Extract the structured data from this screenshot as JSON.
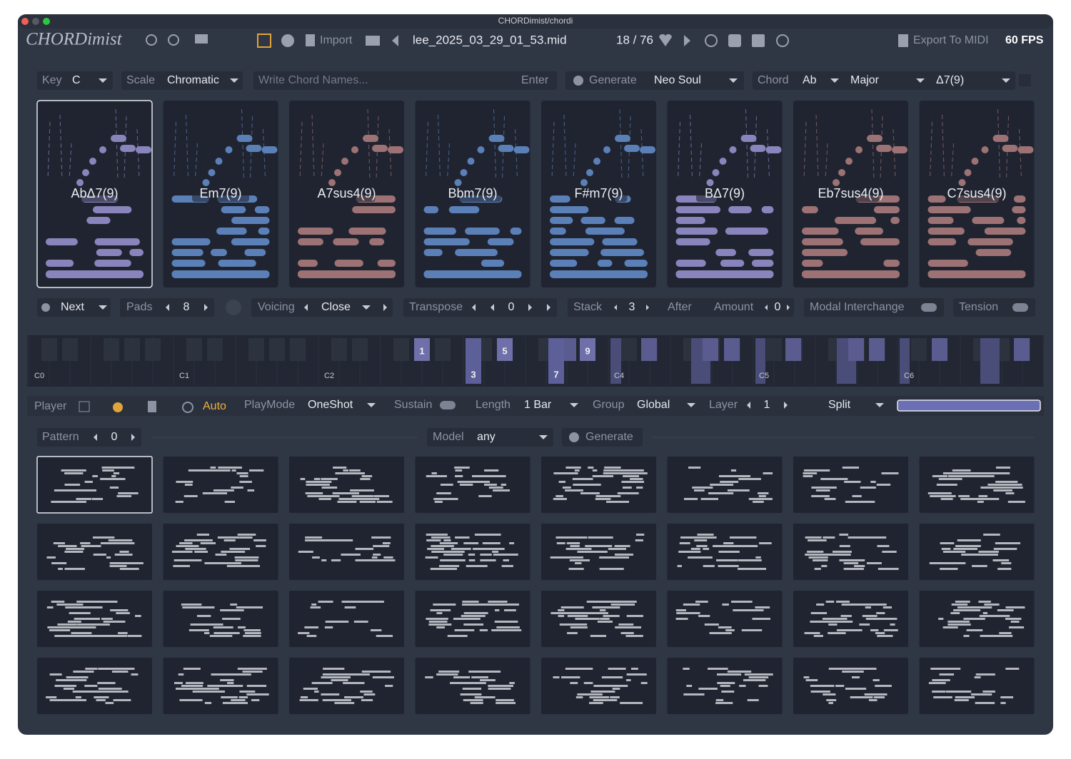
{
  "window_title": "CHORDimist/chordi",
  "toolbar": {
    "logo": "CHORDimist",
    "import": "Import",
    "file": "lee_2025_03_29_01_53.mid",
    "position": "18 / 76",
    "export": "Export To MIDI",
    "fps": "60 FPS"
  },
  "chord_bar": {
    "key_label": "Key",
    "key": "C",
    "scale_label": "Scale",
    "scale": "Chromatic",
    "input_placeholder": "Write Chord Names...",
    "enter": "Enter",
    "generate": "Generate",
    "style": "Neo Soul",
    "chord_label": "Chord",
    "root": "Ab",
    "quality": "Major",
    "extension": "Δ7(9)"
  },
  "pads": [
    {
      "name": "AbΔ7(9)",
      "color": "#8a84bd"
    },
    {
      "name": "Em7(9)",
      "color": "#5b80b8"
    },
    {
      "name": "A7sus4(9)",
      "color": "#9c7274"
    },
    {
      "name": "Bbm7(9)",
      "color": "#5b80b8"
    },
    {
      "name": "F#m7(9)",
      "color": "#5b80b8"
    },
    {
      "name": "BΔ7(9)",
      "color": "#8a84bd"
    },
    {
      "name": "Eb7sus4(9)",
      "color": "#9c7274"
    },
    {
      "name": "C7sus4(9)",
      "color": "#9c7274"
    }
  ],
  "pad_controls": {
    "next": "Next",
    "pads_label": "Pads",
    "pads": "8",
    "voicing_label": "Voicing",
    "voicing": "Close",
    "transpose_label": "Transpose",
    "transpose": "0",
    "stack_label": "Stack",
    "stack": "3",
    "after": "After",
    "amount_label": "Amount",
    "amount": "0",
    "modal_interchange": "Modal Interchange",
    "tension": "Tension"
  },
  "keyboard": {
    "octave_labels": [
      "C0",
      "C1",
      "C2",
      "C4",
      "C5",
      "C6"
    ],
    "notes": [
      "1",
      "3",
      "5",
      "7",
      "9"
    ]
  },
  "player": {
    "label": "Player",
    "auto": "Auto",
    "playmode_label": "PlayMode",
    "playmode": "OneShot",
    "sustain": "Sustain",
    "length_label": "Length",
    "length": "1 Bar",
    "group_label": "Group",
    "group": "Global",
    "layer_label": "Layer",
    "layer": "1",
    "split": "Split"
  },
  "pattern": {
    "label": "Pattern",
    "index": "0",
    "model_label": "Model",
    "model": "any",
    "generate": "Generate"
  }
}
